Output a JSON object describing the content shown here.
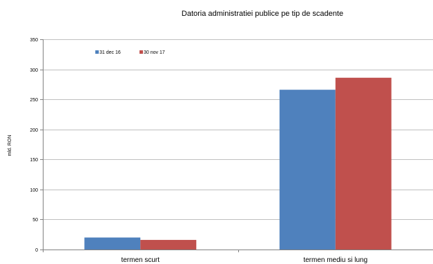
{
  "chart_data": {
    "type": "bar",
    "title": "Datoria administratiei publice  pe tip de scadente",
    "ylabel": "mld. RON",
    "xlabel": "",
    "categories": [
      "termen scurt",
      "termen mediu si lung"
    ],
    "series": [
      {
        "name": "31 dec 16",
        "color": "#4f81bd",
        "values": [
          20,
          266
        ]
      },
      {
        "name": "30 nov 17",
        "color": "#c0504d",
        "values": [
          16,
          286
        ]
      }
    ],
    "ylim": [
      0,
      350
    ],
    "yticks": [
      "0",
      "50",
      "100",
      "150",
      "200",
      "250",
      "300",
      "350"
    ],
    "grid": true,
    "legend_position": "top-left"
  }
}
